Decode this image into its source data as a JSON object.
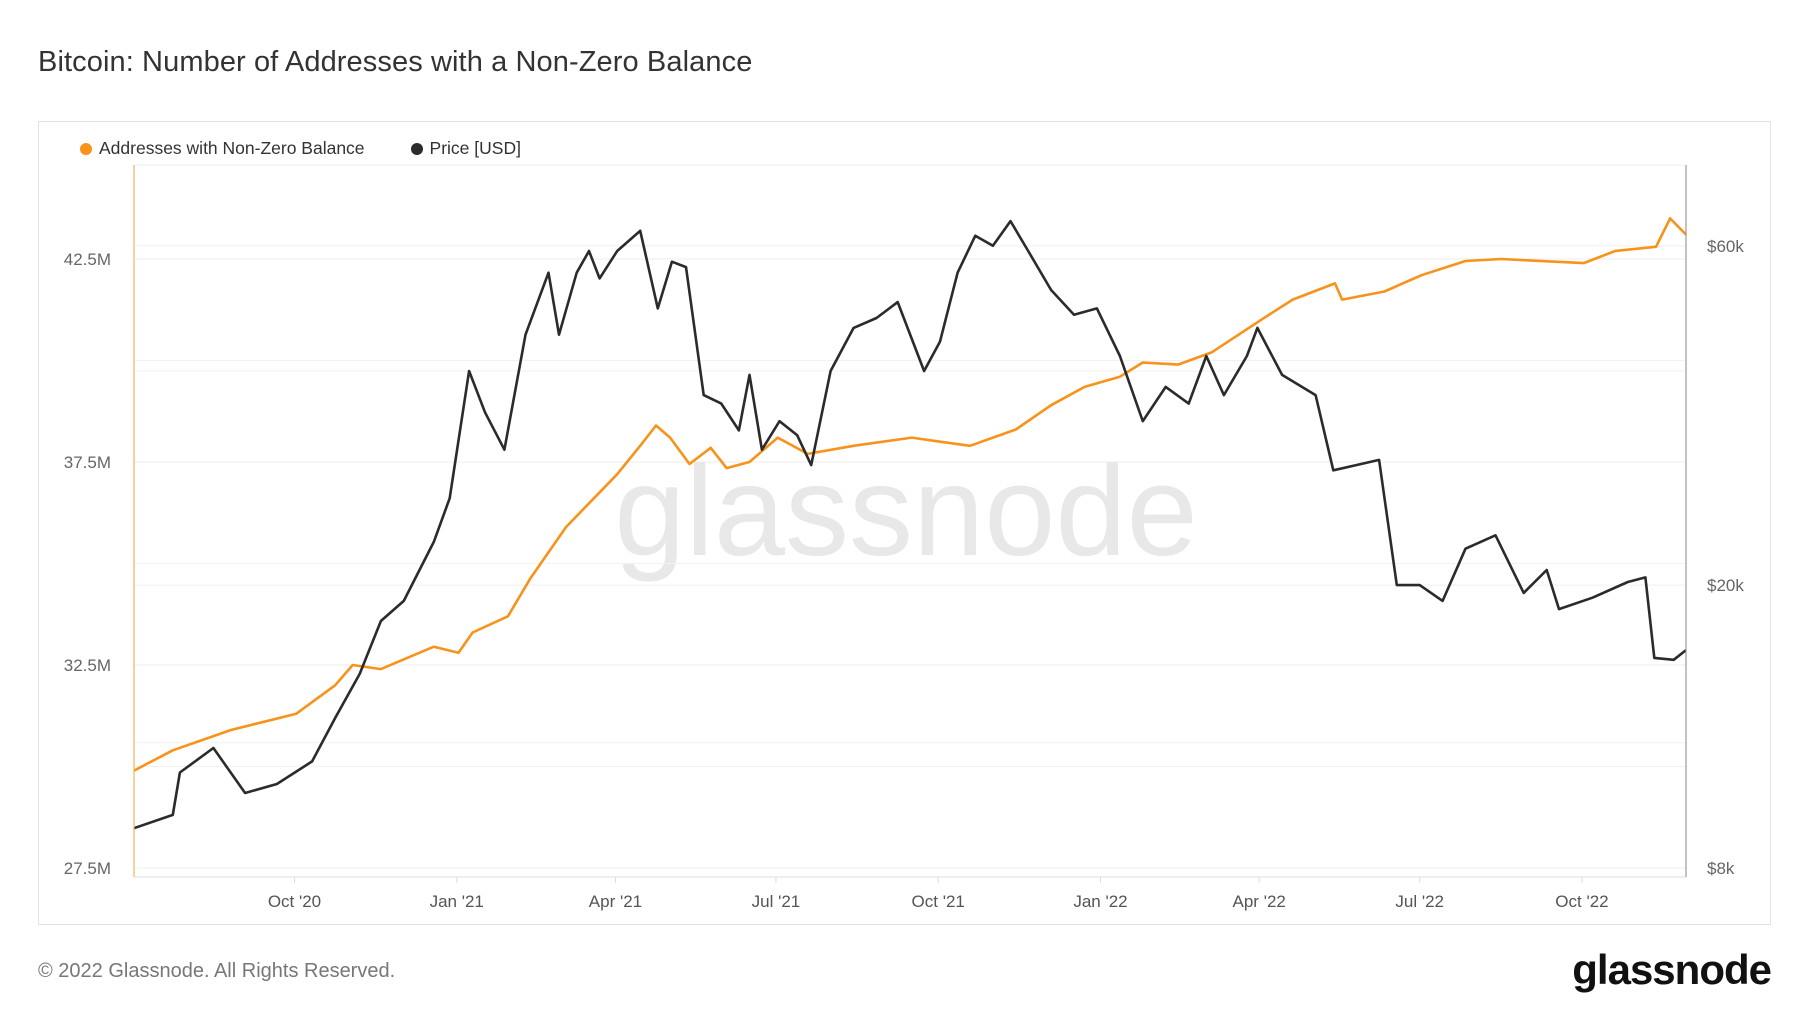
{
  "title": "Bitcoin: Number of Addresses with a Non-Zero Balance",
  "footer": {
    "copyright": "© 2022 Glassnode. All Rights Reserved.",
    "logo": "glassnode"
  },
  "watermark": "glassnode",
  "colors": {
    "addresses": "#f7931a",
    "price": "#2b2b2b",
    "grid": "#ececec",
    "axis_text": "#666666"
  },
  "chart_data": {
    "type": "line",
    "title": "Bitcoin: Number of Addresses with a Non-Zero Balance",
    "legend_position": "top-left",
    "grid": true,
    "x_range": [
      "2020-07-02",
      "2022-11-29"
    ],
    "x_ticks": [
      {
        "date": "2020-10-01",
        "label": "Oct '20"
      },
      {
        "date": "2021-01-01",
        "label": "Jan '21"
      },
      {
        "date": "2021-04-01",
        "label": "Apr '21"
      },
      {
        "date": "2021-07-01",
        "label": "Jul '21"
      },
      {
        "date": "2021-10-01",
        "label": "Oct '21"
      },
      {
        "date": "2022-01-01",
        "label": "Jan '22"
      },
      {
        "date": "2022-04-01",
        "label": "Apr '22"
      },
      {
        "date": "2022-07-01",
        "label": "Jul '22"
      },
      {
        "date": "2022-10-01",
        "label": "Oct '22"
      }
    ],
    "y_left": {
      "label": "Addresses",
      "scale": "linear",
      "unit": "M",
      "ticks": [
        {
          "value": 42.5,
          "label": "42.5M"
        },
        {
          "value": 37.5,
          "label": "37.5M"
        },
        {
          "value": 32.5,
          "label": "32.5M"
        },
        {
          "value": 27.5,
          "label": "27.5M"
        }
      ]
    },
    "y_right": {
      "label": "Price [USD]",
      "scale": "log",
      "ticks": [
        {
          "value": 60000,
          "label": "$60k"
        },
        {
          "value": 20000,
          "label": "$20k"
        },
        {
          "value": 8000,
          "label": "$8k"
        }
      ]
    },
    "series": [
      {
        "name": "Addresses with Non-Zero Balance",
        "axis": "left",
        "color": "#f7931a",
        "points": [
          [
            "2020-07-02",
            29.9
          ],
          [
            "2020-07-24",
            30.4
          ],
          [
            "2020-08-26",
            30.9
          ],
          [
            "2020-10-02",
            31.3
          ],
          [
            "2020-10-24",
            32.0
          ],
          [
            "2020-11-03",
            32.5
          ],
          [
            "2020-11-19",
            32.4
          ],
          [
            "2020-12-19",
            32.95
          ],
          [
            "2021-01-02",
            32.8
          ],
          [
            "2021-01-10",
            33.3
          ],
          [
            "2021-01-30",
            33.7
          ],
          [
            "2021-02-12",
            34.65
          ],
          [
            "2021-03-04",
            35.9
          ],
          [
            "2021-04-02",
            37.2
          ],
          [
            "2021-04-15",
            37.9
          ],
          [
            "2021-04-24",
            38.4
          ],
          [
            "2021-05-02",
            38.1
          ],
          [
            "2021-05-13",
            37.45
          ],
          [
            "2021-05-25",
            37.85
          ],
          [
            "2021-06-03",
            37.35
          ],
          [
            "2021-06-16",
            37.5
          ],
          [
            "2021-07-02",
            38.1
          ],
          [
            "2021-07-19",
            37.7
          ],
          [
            "2021-08-14",
            37.9
          ],
          [
            "2021-09-16",
            38.1
          ],
          [
            "2021-10-02",
            38.0
          ],
          [
            "2021-10-19",
            37.9
          ],
          [
            "2021-11-14",
            38.3
          ],
          [
            "2021-12-04",
            38.9
          ],
          [
            "2021-12-23",
            39.35
          ],
          [
            "2022-01-12",
            39.6
          ],
          [
            "2022-01-25",
            39.95
          ],
          [
            "2022-02-14",
            39.9
          ],
          [
            "2022-03-05",
            40.2
          ],
          [
            "2022-04-02",
            41.0
          ],
          [
            "2022-04-20",
            41.5
          ],
          [
            "2022-05-14",
            41.9
          ],
          [
            "2022-05-18",
            41.5
          ],
          [
            "2022-06-11",
            41.7
          ],
          [
            "2022-07-02",
            42.1
          ],
          [
            "2022-07-27",
            42.45
          ],
          [
            "2022-08-16",
            42.5
          ],
          [
            "2022-10-02",
            42.4
          ],
          [
            "2022-10-20",
            42.7
          ],
          [
            "2022-11-12",
            42.8
          ],
          [
            "2022-11-20",
            43.5
          ],
          [
            "2022-11-29",
            43.1
          ]
        ]
      },
      {
        "name": "Price [USD]",
        "axis": "right",
        "color": "#2b2b2b",
        "points": [
          [
            "2020-07-02",
            9100
          ],
          [
            "2020-07-24",
            9500
          ],
          [
            "2020-07-28",
            10900
          ],
          [
            "2020-08-16",
            11800
          ],
          [
            "2020-09-03",
            10200
          ],
          [
            "2020-09-21",
            10500
          ],
          [
            "2020-10-11",
            11300
          ],
          [
            "2020-10-24",
            13000
          ],
          [
            "2020-11-07",
            15000
          ],
          [
            "2020-11-19",
            17800
          ],
          [
            "2020-12-02",
            19000
          ],
          [
            "2020-12-19",
            23000
          ],
          [
            "2020-12-28",
            26500
          ],
          [
            "2021-01-08",
            40000
          ],
          [
            "2021-01-17",
            35000
          ],
          [
            "2021-01-28",
            31000
          ],
          [
            "2021-02-09",
            45000
          ],
          [
            "2021-02-22",
            55000
          ],
          [
            "2021-02-28",
            45000
          ],
          [
            "2021-03-10",
            55000
          ],
          [
            "2021-03-17",
            59000
          ],
          [
            "2021-03-23",
            54000
          ],
          [
            "2021-04-02",
            59000
          ],
          [
            "2021-04-15",
            63000
          ],
          [
            "2021-04-25",
            49000
          ],
          [
            "2021-05-03",
            57000
          ],
          [
            "2021-05-11",
            56000
          ],
          [
            "2021-05-21",
            37000
          ],
          [
            "2021-05-31",
            36000
          ],
          [
            "2021-06-10",
            33000
          ],
          [
            "2021-06-16",
            39500
          ],
          [
            "2021-06-23",
            31000
          ],
          [
            "2021-07-03",
            34000
          ],
          [
            "2021-07-13",
            32500
          ],
          [
            "2021-07-21",
            29500
          ],
          [
            "2021-08-01",
            40000
          ],
          [
            "2021-08-14",
            46000
          ],
          [
            "2021-08-27",
            47500
          ],
          [
            "2021-09-08",
            50000
          ],
          [
            "2021-09-23",
            40000
          ],
          [
            "2021-10-02",
            44000
          ],
          [
            "2021-10-12",
            55000
          ],
          [
            "2021-10-22",
            62000
          ],
          [
            "2021-11-01",
            60000
          ],
          [
            "2021-11-11",
            65000
          ],
          [
            "2021-11-21",
            59000
          ],
          [
            "2021-12-04",
            52000
          ],
          [
            "2021-12-17",
            48000
          ],
          [
            "2021-12-30",
            49000
          ],
          [
            "2022-01-12",
            42000
          ],
          [
            "2022-01-25",
            34000
          ],
          [
            "2022-02-07",
            38000
          ],
          [
            "2022-02-20",
            36000
          ],
          [
            "2022-03-02",
            42000
          ],
          [
            "2022-03-12",
            37000
          ],
          [
            "2022-03-25",
            42000
          ],
          [
            "2022-03-31",
            46000
          ],
          [
            "2022-04-14",
            39500
          ],
          [
            "2022-05-03",
            37000
          ],
          [
            "2022-05-13",
            29000
          ],
          [
            "2022-05-26",
            29500
          ],
          [
            "2022-06-08",
            30000
          ],
          [
            "2022-06-18",
            20000
          ],
          [
            "2022-07-01",
            20000
          ],
          [
            "2022-07-14",
            19000
          ],
          [
            "2022-07-27",
            22500
          ],
          [
            "2022-08-13",
            23500
          ],
          [
            "2022-08-29",
            19500
          ],
          [
            "2022-09-11",
            21000
          ],
          [
            "2022-09-18",
            18500
          ],
          [
            "2022-10-07",
            19200
          ],
          [
            "2022-10-27",
            20200
          ],
          [
            "2022-11-06",
            20500
          ],
          [
            "2022-11-11",
            15800
          ],
          [
            "2022-11-22",
            15700
          ],
          [
            "2022-11-29",
            16200
          ]
        ]
      }
    ]
  }
}
